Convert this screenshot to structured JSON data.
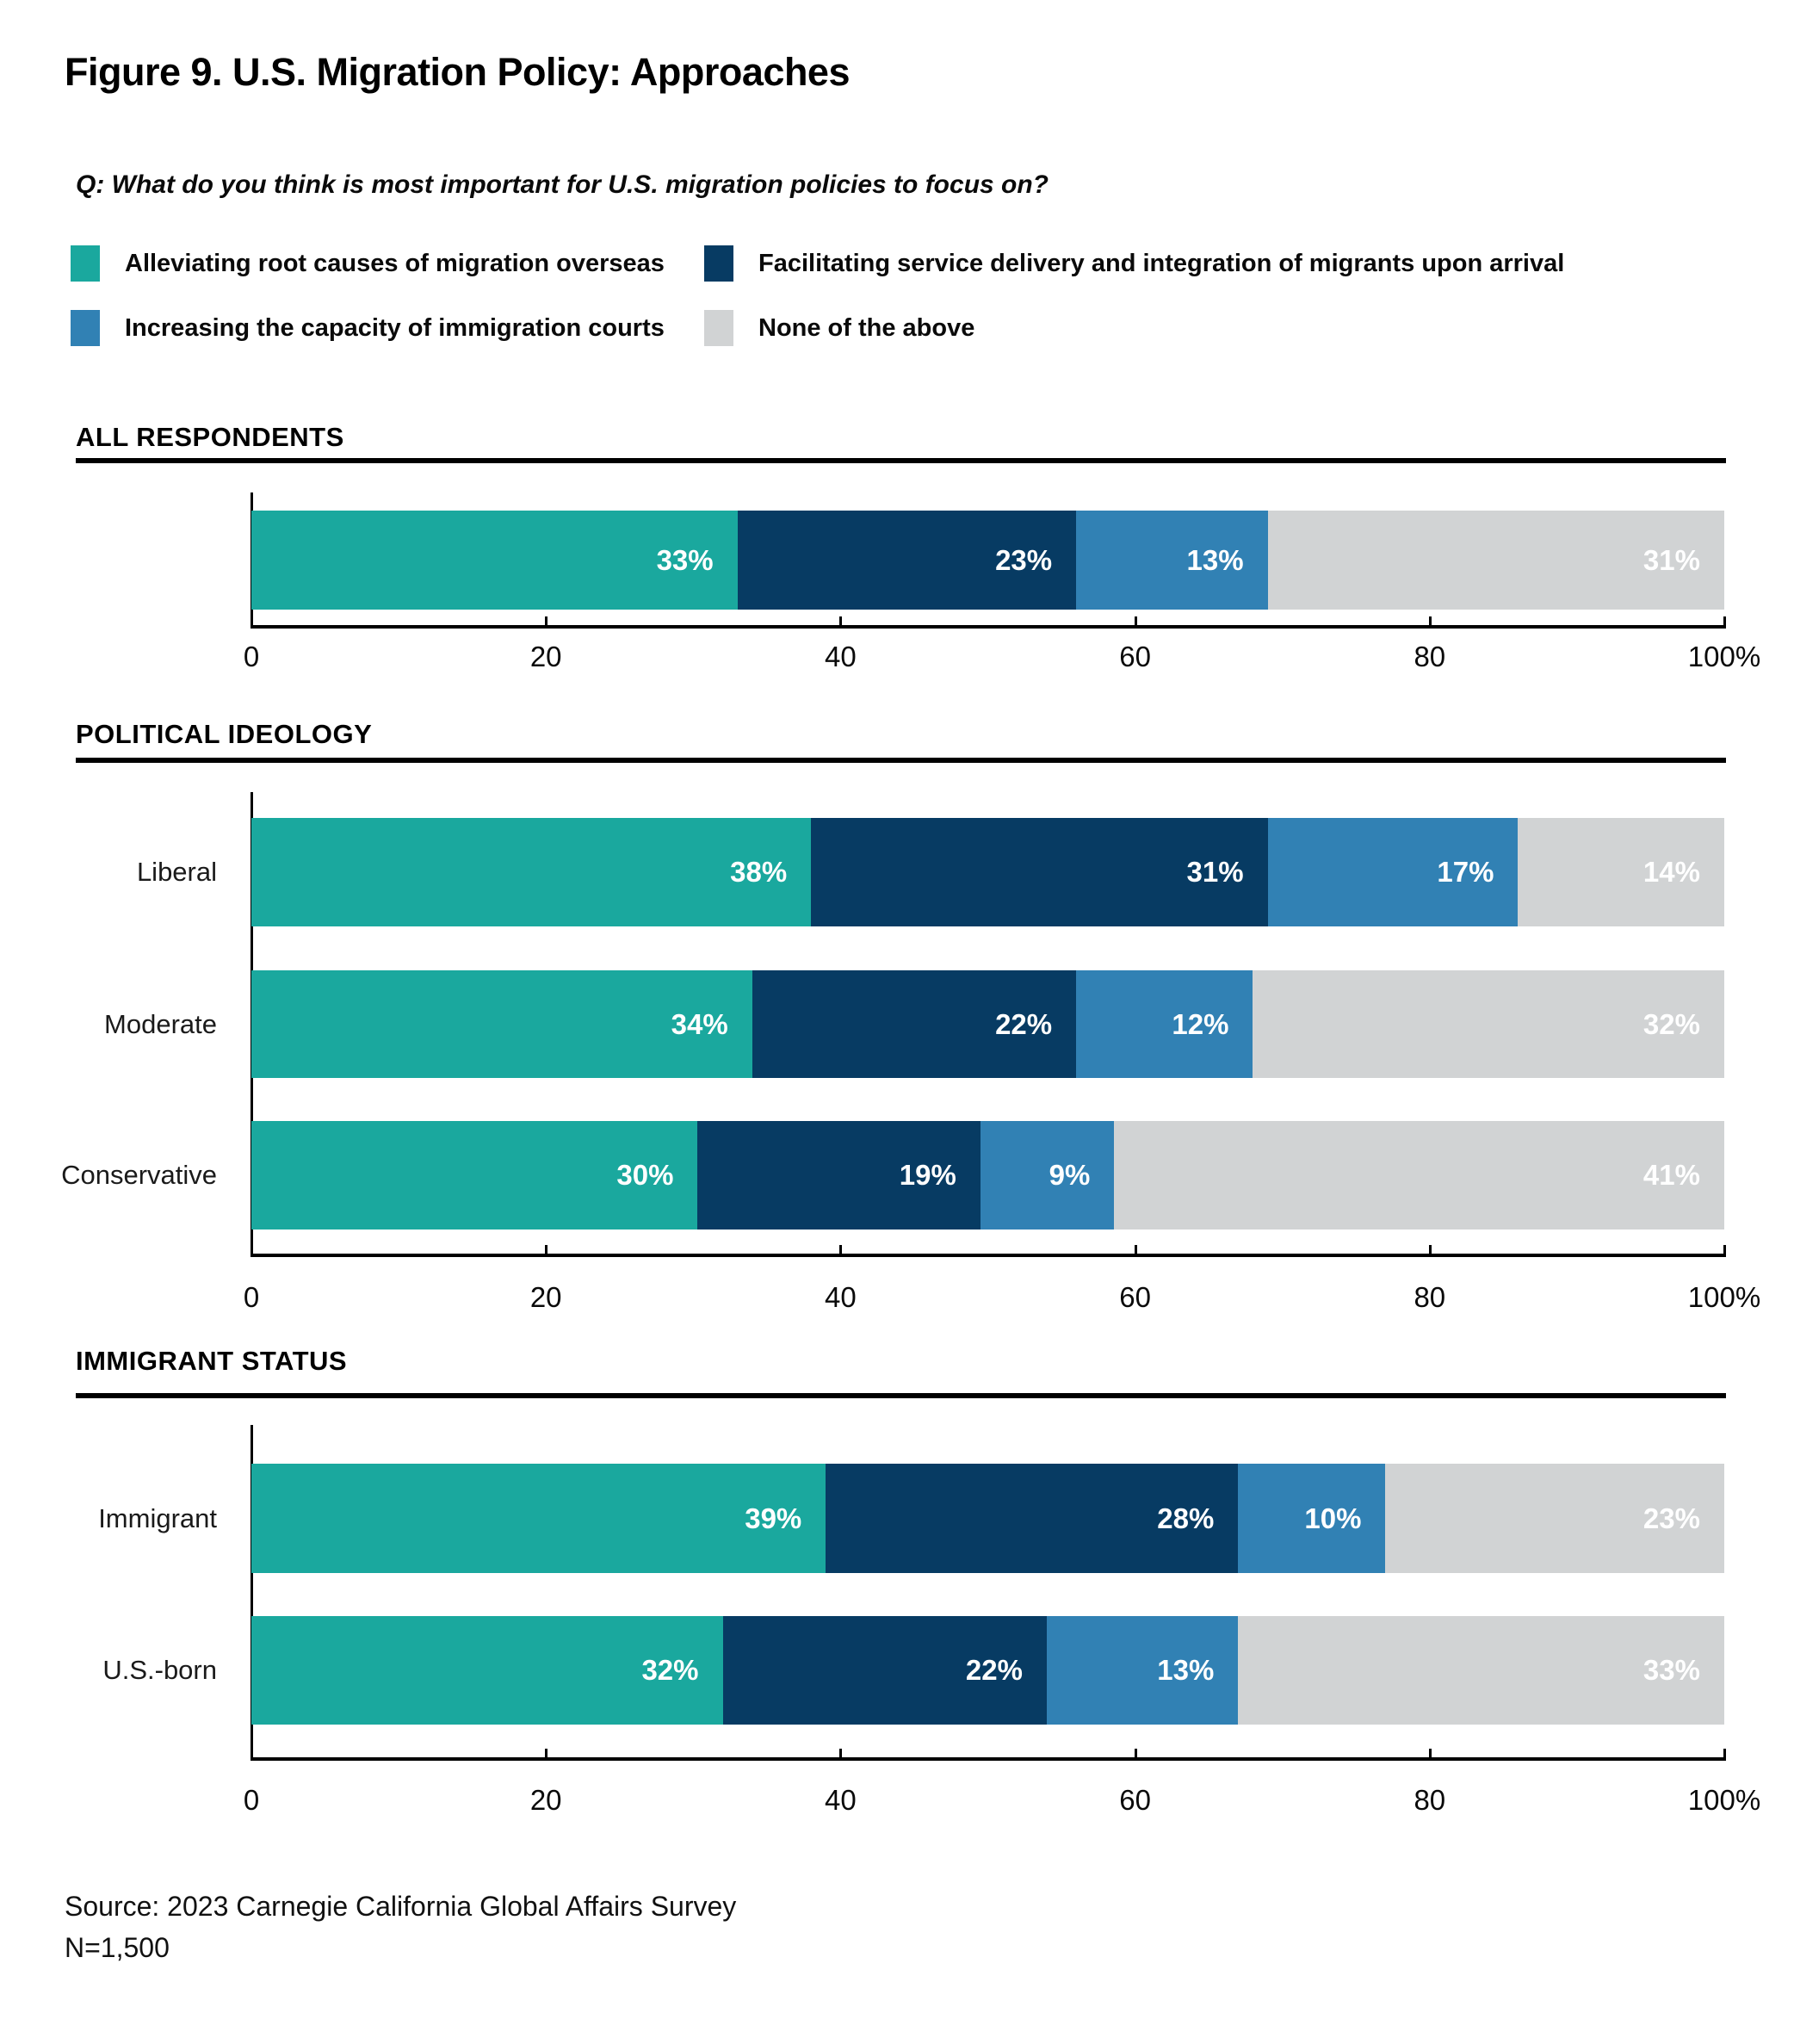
{
  "title": "Figure 9. U.S. Migration Policy: Approaches",
  "question": "Q: What do you think is most important for U.S. migration policies to focus on?",
  "legend": [
    {
      "label": "Alleviating root causes of migration overseas",
      "color": "#1AA89E"
    },
    {
      "label": "Facilitating service delivery and integration of migrants upon arrival",
      "color": "#073B63"
    },
    {
      "label": "Increasing the capacity of immigration courts",
      "color": "#3181B4"
    },
    {
      "label": "None of the above",
      "color": "#D1D3D4"
    }
  ],
  "source_line1": "Source: 2023 Carnegie California Global Affairs Survey",
  "source_line2": "N=1,500",
  "chart_data": [
    {
      "type": "bar",
      "orientation": "horizontal",
      "stacked": true,
      "section": "ALL RESPONDENTS",
      "categories": [
        ""
      ],
      "series": [
        {
          "name": "Alleviating root causes of migration overseas",
          "values": [
            33
          ]
        },
        {
          "name": "Facilitating service delivery and integration of migrants upon arrival",
          "values": [
            23
          ]
        },
        {
          "name": "Increasing the capacity of immigration courts",
          "values": [
            13
          ]
        },
        {
          "name": "None of the above",
          "values": [
            31
          ]
        }
      ],
      "xlim": [
        0,
        100
      ],
      "tick_values": [
        0,
        20,
        40,
        60,
        80,
        100
      ],
      "tick_labels": [
        "0",
        "20",
        "40",
        "60",
        "80",
        "100%"
      ],
      "grid": false,
      "value_suffix": "%"
    },
    {
      "type": "bar",
      "orientation": "horizontal",
      "stacked": true,
      "section": "POLITICAL IDEOLOGY",
      "categories": [
        "Liberal",
        "Moderate",
        "Conservative"
      ],
      "series": [
        {
          "name": "Alleviating root causes of migration overseas",
          "values": [
            38,
            34,
            30
          ]
        },
        {
          "name": "Facilitating service delivery and integration of migrants upon arrival",
          "values": [
            31,
            22,
            19
          ]
        },
        {
          "name": "Increasing the capacity of immigration courts",
          "values": [
            17,
            12,
            9
          ]
        },
        {
          "name": "None of the above",
          "values": [
            14,
            32,
            41
          ]
        }
      ],
      "xlim": [
        0,
        100
      ],
      "tick_values": [
        0,
        20,
        40,
        60,
        80,
        100
      ],
      "tick_labels": [
        "0",
        "20",
        "40",
        "60",
        "80",
        "100%"
      ],
      "grid": false,
      "value_suffix": "%"
    },
    {
      "type": "bar",
      "orientation": "horizontal",
      "stacked": true,
      "section": "IMMIGRANT STATUS",
      "categories": [
        "Immigrant",
        "U.S.-born"
      ],
      "series": [
        {
          "name": "Alleviating root causes of migration overseas",
          "values": [
            39,
            32
          ]
        },
        {
          "name": "Facilitating service delivery and integration of migrants upon arrival",
          "values": [
            28,
            22
          ]
        },
        {
          "name": "Increasing the capacity of immigration courts",
          "values": [
            10,
            13
          ]
        },
        {
          "name": "None of the above",
          "values": [
            23,
            33
          ]
        }
      ],
      "xlim": [
        0,
        100
      ],
      "tick_values": [
        0,
        20,
        40,
        60,
        80,
        100
      ],
      "tick_labels": [
        "0",
        "20",
        "40",
        "60",
        "80",
        "100%"
      ],
      "grid": false,
      "value_suffix": "%"
    }
  ]
}
